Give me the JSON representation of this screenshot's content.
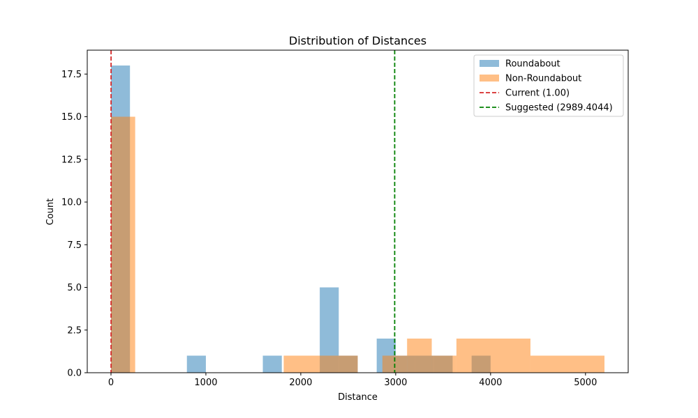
{
  "chart_data": {
    "type": "bar",
    "title": "Distribution of Distances",
    "xlabel": "Distance",
    "ylabel": "Count",
    "xlim": [
      -250,
      5450
    ],
    "ylim": [
      0,
      18.9
    ],
    "xticks": [
      0,
      1000,
      2000,
      3000,
      4000,
      5000
    ],
    "yticks": [
      0.0,
      2.5,
      5.0,
      7.5,
      10.0,
      12.5,
      15.0,
      17.5
    ],
    "grid": false,
    "legend_position": "top-right",
    "series": [
      {
        "name": "Roundabout",
        "color": "#1f77b4",
        "opacity": 0.5,
        "bins": [
          {
            "x0": 0,
            "x1": 200,
            "count": 18
          },
          {
            "x0": 800,
            "x1": 1000,
            "count": 1
          },
          {
            "x0": 1600,
            "x1": 1800,
            "count": 1
          },
          {
            "x0": 2200,
            "x1": 2400,
            "count": 5
          },
          {
            "x0": 2400,
            "x1": 2600,
            "count": 1
          },
          {
            "x0": 2800,
            "x1": 3000,
            "count": 2
          },
          {
            "x0": 3000,
            "x1": 3200,
            "count": 1
          },
          {
            "x0": 3200,
            "x1": 3400,
            "count": 1
          },
          {
            "x0": 3400,
            "x1": 3600,
            "count": 1
          },
          {
            "x0": 3800,
            "x1": 4000,
            "count": 1
          }
        ]
      },
      {
        "name": "Non-Roundabout",
        "color": "#ff7f0e",
        "opacity": 0.5,
        "bins": [
          {
            "x0": 0,
            "x1": 255,
            "count": 15
          },
          {
            "x0": 1820,
            "x1": 2210,
            "count": 1
          },
          {
            "x0": 2210,
            "x1": 2600,
            "count": 1
          },
          {
            "x0": 2860,
            "x1": 3120,
            "count": 1
          },
          {
            "x0": 3120,
            "x1": 3380,
            "count": 2
          },
          {
            "x0": 3380,
            "x1": 3640,
            "count": 1
          },
          {
            "x0": 3640,
            "x1": 4420,
            "count": 2
          },
          {
            "x0": 4420,
            "x1": 5200,
            "count": 1
          }
        ]
      }
    ],
    "reference_lines": [
      {
        "name": "Current (1.00)",
        "x": 1.0,
        "color": "#d62728",
        "style": "dashed"
      },
      {
        "name": "Suggested (2989.4044)",
        "x": 2989.4044,
        "color": "#008000",
        "style": "dashed"
      }
    ]
  }
}
